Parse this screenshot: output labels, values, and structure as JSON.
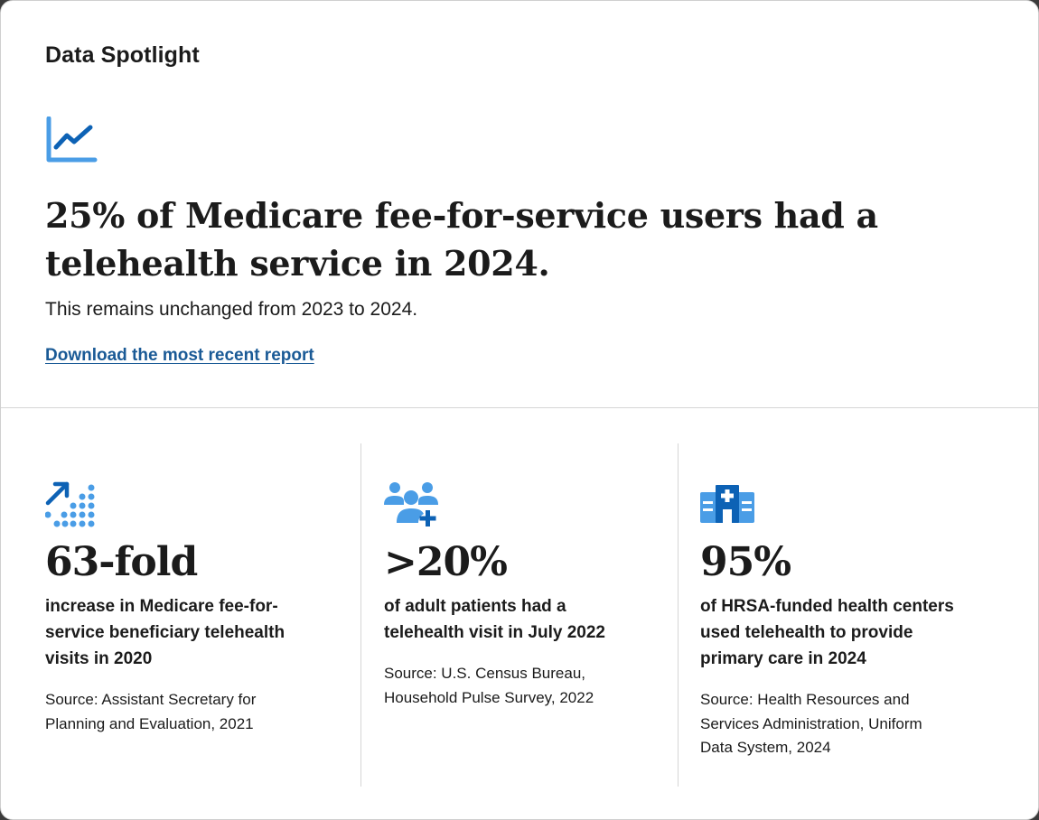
{
  "eyebrow": "Data Spotlight",
  "hero": {
    "icon": "line-chart-icon",
    "headline": "25% of Medicare fee-for-service users had a telehealth service in 2024.",
    "subline": "This remains unchanged from 2023 to 2024.",
    "link_label": "Download the most recent report"
  },
  "stats": [
    {
      "icon": "growth-arrow-dots-icon",
      "value": "63-fold",
      "description": "increase in Medicare fee-for-service beneficiary telehealth visits in 2020",
      "source": "Source: Assistant Secretary for Planning and Evaluation, 2021"
    },
    {
      "icon": "group-add-icon",
      "value": ">20%",
      "description": "of adult patients had a telehealth visit in July 2022",
      "source": "Source: U.S. Census Bureau, Household Pulse Survey, 2022"
    },
    {
      "icon": "hospital-building-icon",
      "value": "95%",
      "description": "of HRSA-funded health centers used telehealth to provide primary care in 2024",
      "source": "Source: Health Resources and Services Administration, Uniform Data System, 2024"
    }
  ],
  "colors": {
    "icon_light": "#4a9de6",
    "icon_dark": "#0d62b5",
    "link": "#1a5a96",
    "text": "#1b1b1b"
  }
}
